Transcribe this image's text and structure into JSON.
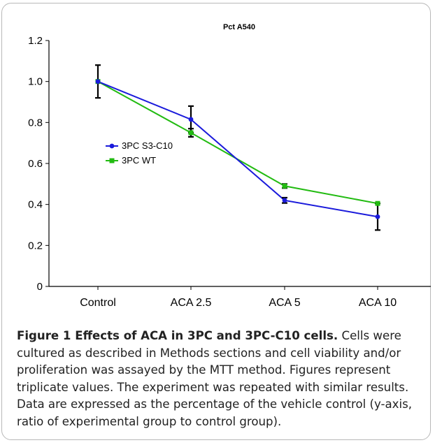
{
  "chart_data": {
    "type": "line",
    "title": "Pct A540",
    "xlabel": "",
    "ylabel": "",
    "categories": [
      "Control",
      "ACA 2.5",
      "ACA 5",
      "ACA 10"
    ],
    "yticks": [
      "0",
      "0.2",
      "0.4",
      "0.6",
      "0.8",
      "1.0",
      "1.2"
    ],
    "ylim": [
      0,
      1.2
    ],
    "grid": false,
    "legend_position": "center-left",
    "series": [
      {
        "name": "3PC S3-C10",
        "color": "#1a1adb",
        "marker": "circle",
        "values": [
          1.0,
          0.815,
          0.42,
          0.34
        ],
        "errors": [
          0.0,
          0.065,
          0.013,
          0.065
        ]
      },
      {
        "name": "3PC WT",
        "color": "#22bb11",
        "marker": "square",
        "values": [
          1.0,
          0.75,
          0.49,
          0.405
        ],
        "errors": [
          0.08,
          0.02,
          0.01,
          0.0
        ]
      }
    ]
  },
  "caption": {
    "title": "Figure 1 Effects of ACA in 3PC and 3PC-C10 cells.",
    "body": " Cells were cultured as described in Methods sections and cell viability and/or proliferation was assayed by the MTT method. Figures represent triplicate values. The experiment was repeated with similar results. Data are expressed as the percentage of the vehicle control (y-axis, ratio of experimental group to control group)."
  }
}
